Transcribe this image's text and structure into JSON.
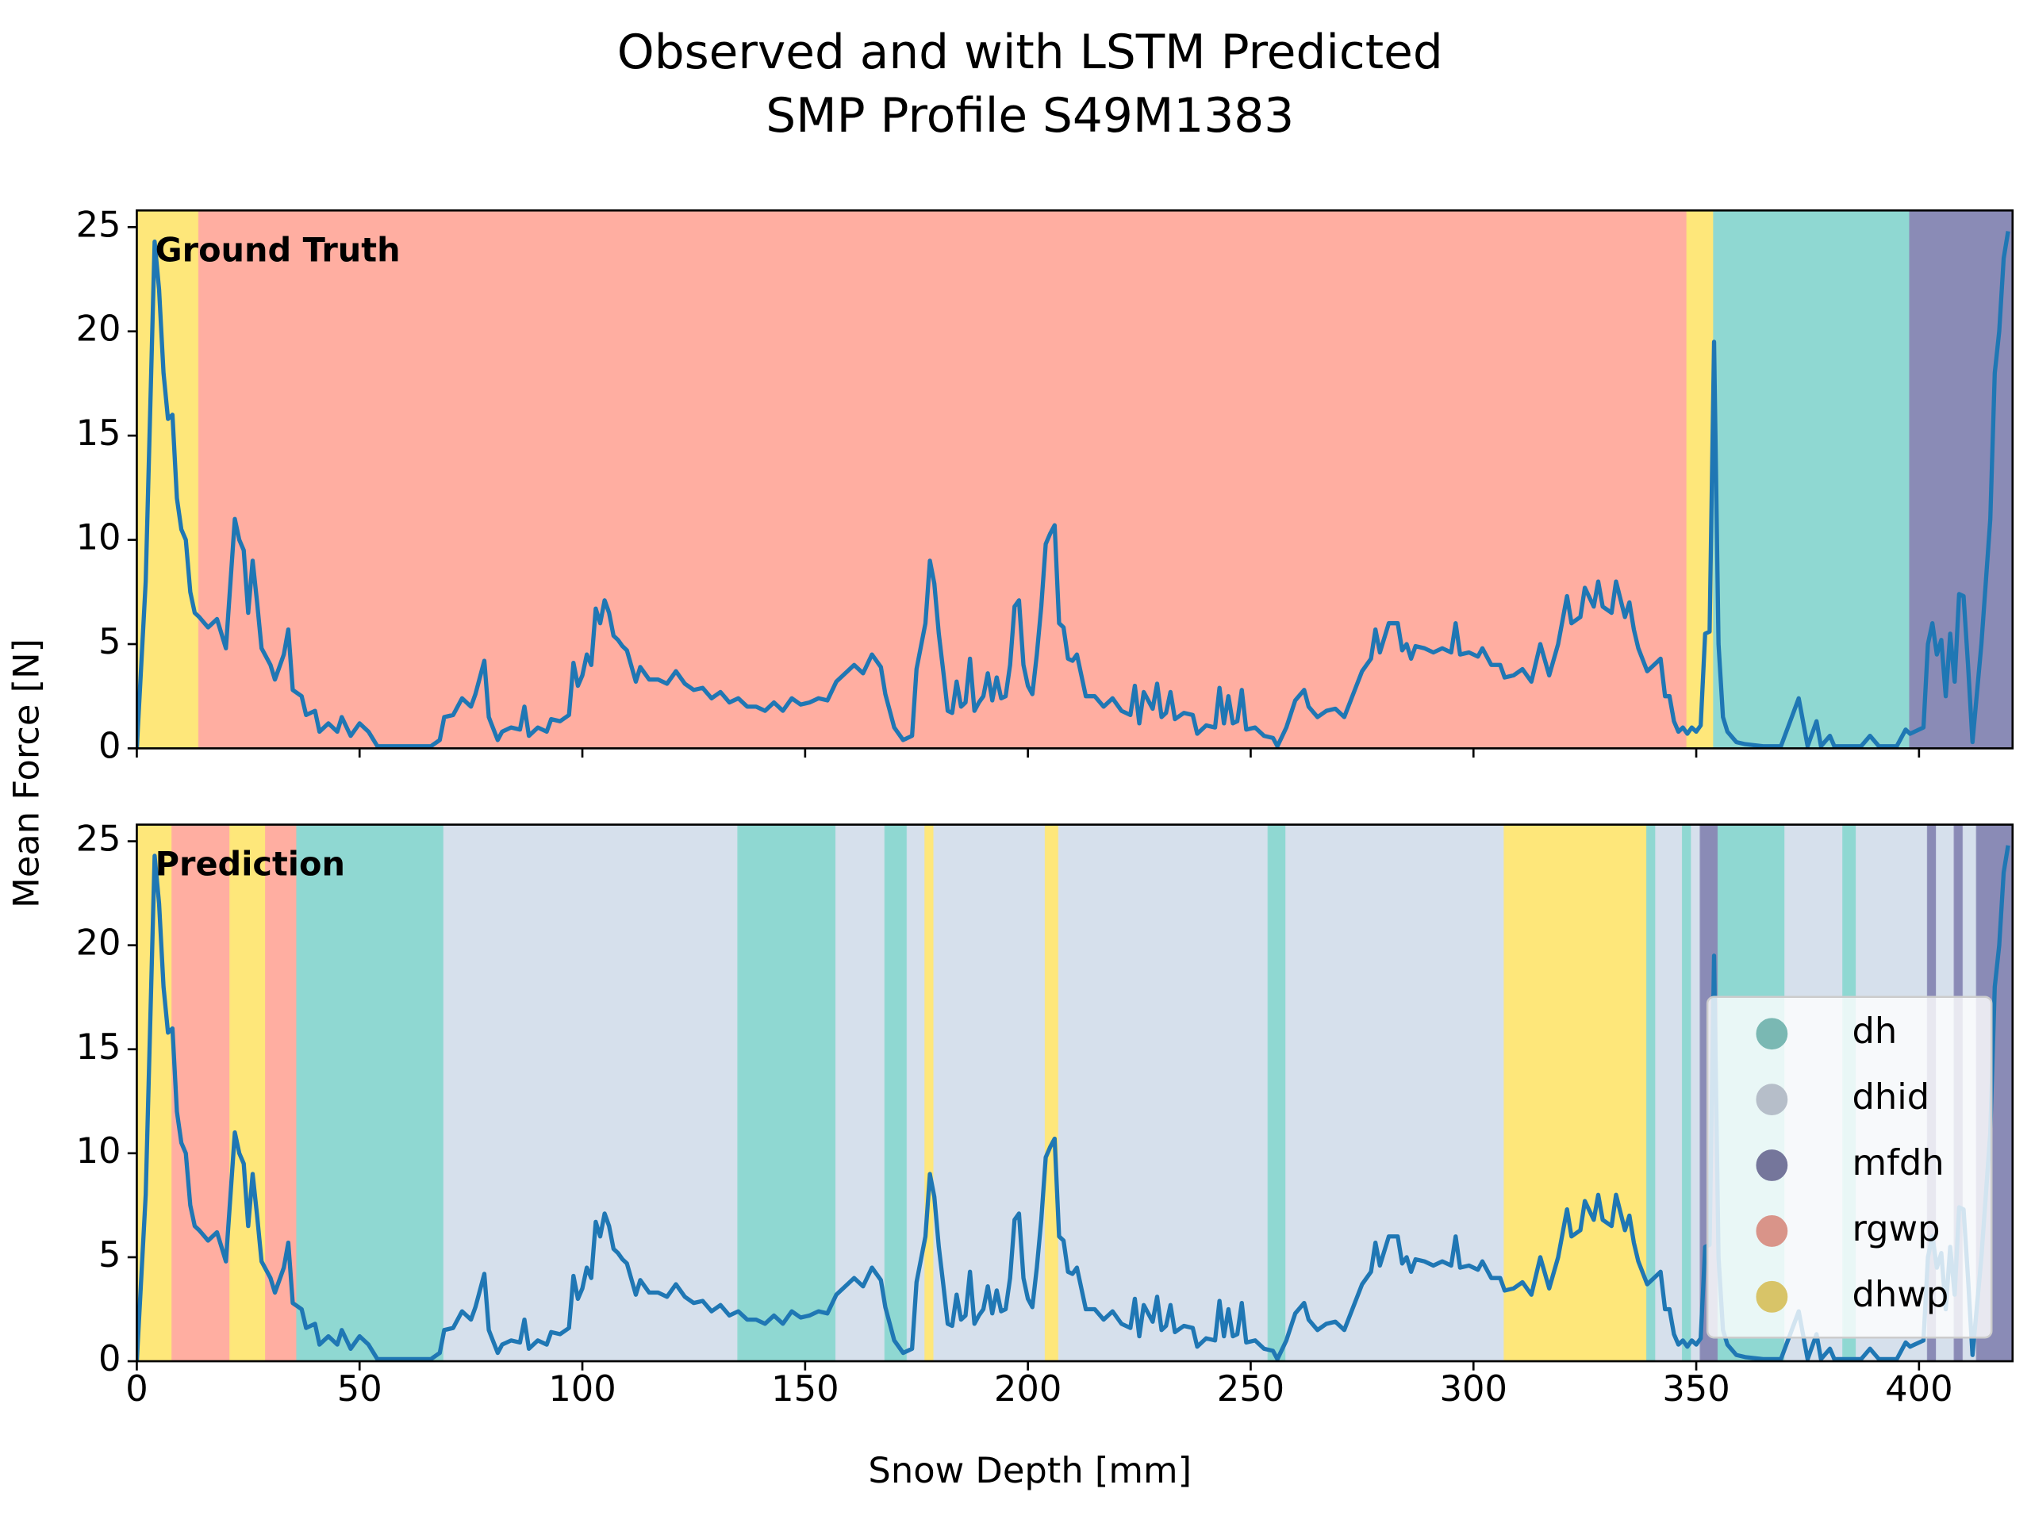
{
  "chart_data": {
    "type": "line",
    "title": [
      "Observed and with LSTM Predicted",
      "SMP Profile S49M1383"
    ],
    "xlabel": "Snow Depth [mm]",
    "ylabel": "Mean Force [N]",
    "color": "#1f77b4",
    "xlim": [
      0,
      421
    ],
    "ylim": [
      0,
      25.8
    ],
    "xticks": [
      0,
      50,
      100,
      150,
      200,
      250,
      300,
      350,
      400
    ],
    "yticks": [
      0,
      5,
      10,
      15,
      20,
      25
    ],
    "legend_loc": "lower right",
    "classes": [
      {
        "name": "dh",
        "color": "#8fd8d2"
      },
      {
        "name": "dhid",
        "color": "#d6e0ec"
      },
      {
        "name": "mfdh",
        "color": "#8a8bb6"
      },
      {
        "name": "rgwp",
        "color": "#ffaea1"
      },
      {
        "name": "dhwp",
        "color": "#fee77a"
      }
    ],
    "panels": [
      {
        "label": "Ground Truth",
        "bands": [
          {
            "start": 0,
            "end": 14,
            "class": "dhwp"
          },
          {
            "start": 14,
            "end": 348,
            "class": "rgwp"
          },
          {
            "start": 348,
            "end": 354,
            "class": "dhwp"
          },
          {
            "start": 354,
            "end": 398,
            "class": "dh"
          },
          {
            "start": 398,
            "end": 421,
            "class": "mfdh"
          }
        ]
      },
      {
        "label": "Prediction",
        "bands": [
          {
            "start": 0,
            "end": 8,
            "class": "dhwp"
          },
          {
            "start": 8,
            "end": 21,
            "class": "rgwp"
          },
          {
            "start": 21,
            "end": 29,
            "class": "dhwp"
          },
          {
            "start": 29,
            "end": 36,
            "class": "rgwp"
          },
          {
            "start": 36,
            "end": 69,
            "class": "dh"
          },
          {
            "start": 69,
            "end": 135,
            "class": "dhid"
          },
          {
            "start": 135,
            "end": 157,
            "class": "dh"
          },
          {
            "start": 157,
            "end": 168,
            "class": "dhid"
          },
          {
            "start": 168,
            "end": 173,
            "class": "dh"
          },
          {
            "start": 173,
            "end": 177,
            "class": "dhid"
          },
          {
            "start": 177,
            "end": 179,
            "class": "dhwp"
          },
          {
            "start": 179,
            "end": 204,
            "class": "dhid"
          },
          {
            "start": 204,
            "end": 207,
            "class": "dhwp"
          },
          {
            "start": 207,
            "end": 254,
            "class": "dhid"
          },
          {
            "start": 254,
            "end": 258,
            "class": "dh"
          },
          {
            "start": 258,
            "end": 307,
            "class": "dhid"
          },
          {
            "start": 307,
            "end": 339,
            "class": "dhwp"
          },
          {
            "start": 339,
            "end": 341,
            "class": "dh"
          },
          {
            "start": 341,
            "end": 347,
            "class": "dhid"
          },
          {
            "start": 347,
            "end": 349,
            "class": "dh"
          },
          {
            "start": 349,
            "end": 351,
            "class": "dhid"
          },
          {
            "start": 351,
            "end": 355,
            "class": "mfdh"
          },
          {
            "start": 355,
            "end": 370,
            "class": "dh"
          },
          {
            "start": 370,
            "end": 383,
            "class": "dhid"
          },
          {
            "start": 383,
            "end": 386,
            "class": "dh"
          },
          {
            "start": 386,
            "end": 402,
            "class": "dhid"
          },
          {
            "start": 402,
            "end": 404,
            "class": "mfdh"
          },
          {
            "start": 404,
            "end": 408,
            "class": "dhid"
          },
          {
            "start": 408,
            "end": 410,
            "class": "mfdh"
          },
          {
            "start": 410,
            "end": 413,
            "class": "dhid"
          },
          {
            "start": 413,
            "end": 421,
            "class": "mfdh"
          }
        ]
      }
    ],
    "x": [
      0,
      2,
      4,
      5,
      6,
      7,
      8,
      9,
      10,
      11,
      12,
      13,
      14,
      16,
      18,
      20,
      22,
      23,
      24,
      25,
      26,
      27,
      28,
      30,
      31,
      33,
      34,
      35,
      37,
      38,
      40,
      41,
      43,
      45,
      46,
      48,
      50,
      52,
      54,
      58,
      62,
      66,
      68,
      69,
      71,
      73,
      75,
      76,
      78,
      79,
      81,
      82,
      84,
      86,
      87,
      88,
      90,
      92,
      93,
      95,
      97,
      98,
      99,
      100,
      101,
      102,
      103,
      104,
      105,
      106,
      107,
      108,
      109,
      110,
      112,
      113,
      115,
      117,
      119,
      121,
      123,
      125,
      127,
      129,
      131,
      133,
      135,
      137,
      139,
      141,
      143,
      145,
      147,
      149,
      151,
      153,
      155,
      157,
      159,
      161,
      163,
      165,
      167,
      168,
      170,
      172,
      174,
      175,
      177,
      178,
      179,
      180,
      181,
      182,
      183,
      184,
      185,
      186,
      187,
      188,
      189,
      190,
      191,
      192,
      193,
      194,
      195,
      196,
      197,
      198,
      199,
      200,
      201,
      202,
      203,
      204,
      205,
      206,
      207,
      208,
      209,
      210,
      211,
      213,
      215,
      217,
      219,
      221,
      223,
      224,
      225,
      226,
      228,
      229,
      230,
      231,
      232,
      233,
      235,
      237,
      238,
      240,
      242,
      243,
      244,
      245,
      246,
      247,
      248,
      249,
      251,
      253,
      255,
      256,
      258,
      260,
      262,
      263,
      265,
      267,
      269,
      271,
      273,
      275,
      277,
      278,
      279,
      281,
      283,
      284,
      285,
      286,
      287,
      289,
      291,
      293,
      295,
      296,
      297,
      299,
      301,
      302,
      304,
      306,
      307,
      309,
      311,
      313,
      315,
      317,
      319,
      321,
      322,
      324,
      325,
      327,
      328,
      329,
      331,
      332,
      334,
      335,
      336,
      337,
      339,
      341,
      342,
      343,
      344,
      345,
      346,
      347,
      348,
      349,
      350,
      351,
      352,
      353,
      354,
      355,
      356,
      357,
      359,
      361,
      365,
      369,
      373,
      375,
      377,
      378,
      380,
      381,
      383,
      387,
      389,
      391,
      395,
      397,
      398,
      400,
      401,
      402,
      403,
      404,
      405,
      406,
      407,
      408,
      409,
      410,
      411,
      412,
      414,
      415,
      416,
      417,
      418,
      419,
      420
    ],
    "values": [
      0,
      8,
      24.3,
      22,
      18,
      15.8,
      16,
      12,
      10.5,
      10,
      7.5,
      6.5,
      6.3,
      5.8,
      6.2,
      4.8,
      11,
      10,
      9.5,
      6.5,
      9,
      7,
      4.8,
      4,
      3.3,
      4.5,
      5.7,
      2.8,
      2.5,
      1.6,
      1.8,
      0.8,
      1.2,
      0.8,
      1.5,
      0.6,
      1.2,
      0.8,
      0.1,
      0.1,
      0.1,
      0.1,
      0.4,
      1.5,
      1.6,
      2.4,
      2,
      2.6,
      4.2,
      1.5,
      0.4,
      0.8,
      1,
      0.9,
      2,
      0.6,
      1,
      0.8,
      1.4,
      1.3,
      1.6,
      4.1,
      3,
      3.5,
      4.5,
      4,
      6.7,
      6,
      7.1,
      6.5,
      5.4,
      5.2,
      4.9,
      4.7,
      3.2,
      3.9,
      3.3,
      3.3,
      3.1,
      3.7,
      3.1,
      2.8,
      2.9,
      2.4,
      2.7,
      2.2,
      2.4,
      2,
      2,
      1.8,
      2.2,
      1.8,
      2.4,
      2.1,
      2.2,
      2.4,
      2.3,
      3.2,
      3.6,
      4,
      3.6,
      4.5,
      3.9,
      2.6,
      1,
      0.4,
      0.6,
      3.8,
      6,
      9,
      7.9,
      5.5,
      3.7,
      1.8,
      1.7,
      3.2,
      2,
      2.2,
      4.3,
      1.8,
      2.2,
      2.5,
      3.6,
      2.3,
      3.4,
      2.4,
      2.5,
      4,
      6.8,
      7.1,
      4,
      3,
      2.6,
      4.5,
      6.8,
      9.8,
      10.3,
      10.7,
      6,
      5.8,
      4.3,
      4.2,
      4.5,
      2.5,
      2.5,
      2,
      2.4,
      1.8,
      1.6,
      3,
      1.2,
      2.7,
      1.9,
      3.1,
      1.5,
      1.7,
      2.7,
      1.4,
      1.7,
      1.6,
      0.7,
      1.1,
      1,
      2.9,
      1.2,
      2.5,
      1.2,
      1.3,
      2.8,
      0.9,
      1,
      0.6,
      0.5,
      0.1,
      1,
      2.3,
      2.8,
      2,
      1.5,
      1.8,
      1.9,
      1.5,
      2.6,
      3.7,
      4.3,
      5.7,
      4.6,
      6,
      6,
      4.7,
      5,
      4.3,
      4.9,
      4.8,
      4.6,
      4.8,
      4.6,
      6,
      4.5,
      4.6,
      4.4,
      4.8,
      4,
      4,
      3.4,
      3.5,
      3.8,
      3.2,
      5,
      3.5,
      5,
      7.3,
      6,
      6.3,
      7.7,
      6.8,
      8,
      6.8,
      6.5,
      8,
      6.3,
      7,
      5.7,
      4.8,
      3.7,
      4.1,
      4.3,
      2.5,
      2.5,
      1.3,
      0.8,
      1,
      0.7,
      1,
      0.8,
      1.1,
      5.5,
      5.6,
      19.5,
      5,
      1.5,
      0.8,
      0.3,
      0.2,
      0.1,
      0.1,
      2.4,
      0.1,
      1.3,
      0.1,
      0.6,
      0.1,
      0.1,
      0.1,
      0.6,
      0.1,
      0.1,
      0.9,
      0.7,
      0.9,
      1,
      5,
      6,
      4.5,
      5.2,
      2.5,
      5.5,
      3.2,
      7.4,
      7.3,
      4,
      0.3,
      5,
      8,
      11,
      18,
      20,
      23.5,
      24.8
    ]
  }
}
